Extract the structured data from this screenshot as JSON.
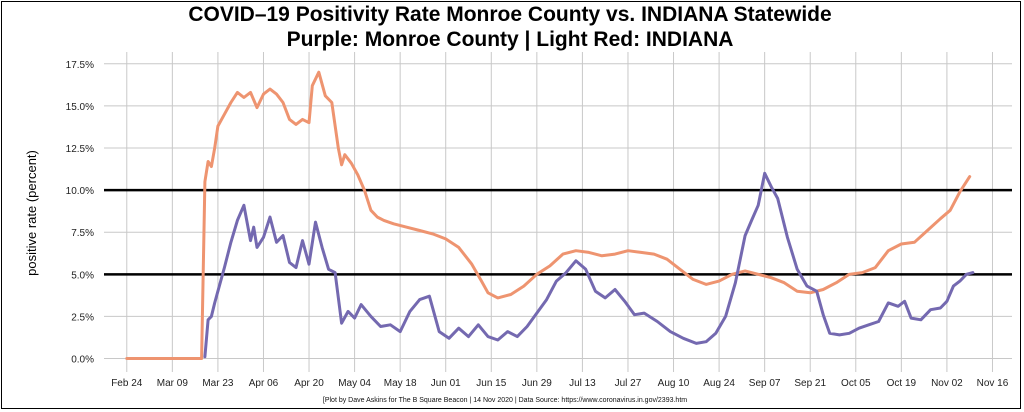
{
  "chart_data": {
    "type": "line",
    "title": "COVID–19 Positivity Rate Monroe County vs. INDIANA Statewide",
    "subtitle": "Purple: Monroe County | Light Red: INDIANA",
    "ylabel": "positive rate (percent)",
    "caption": "[Plot by Dave Askins for The B Square Beacon | 14 Nov 2020 | Data Source: https://www.coronavirus.in.gov/2393.htm",
    "xlim": [
      "2020-02-17",
      "2020-11-22"
    ],
    "ylim": [
      -0.8,
      18.2
    ],
    "x_ticks": [
      {
        "date": "2020-02-24",
        "label": "Feb 24"
      },
      {
        "date": "2020-03-09",
        "label": "Mar 09"
      },
      {
        "date": "2020-03-23",
        "label": "Mar 23"
      },
      {
        "date": "2020-04-06",
        "label": "Apr 06"
      },
      {
        "date": "2020-04-20",
        "label": "Apr 20"
      },
      {
        "date": "2020-05-04",
        "label": "May 04"
      },
      {
        "date": "2020-05-18",
        "label": "May 18"
      },
      {
        "date": "2020-06-01",
        "label": "Jun 01"
      },
      {
        "date": "2020-06-15",
        "label": "Jun 15"
      },
      {
        "date": "2020-06-29",
        "label": "Jun 29"
      },
      {
        "date": "2020-07-13",
        "label": "Jul 13"
      },
      {
        "date": "2020-07-27",
        "label": "Jul 27"
      },
      {
        "date": "2020-08-10",
        "label": "Aug 10"
      },
      {
        "date": "2020-08-24",
        "label": "Aug 24"
      },
      {
        "date": "2020-09-07",
        "label": "Sep 07"
      },
      {
        "date": "2020-09-21",
        "label": "Sep 21"
      },
      {
        "date": "2020-10-05",
        "label": "Oct 05"
      },
      {
        "date": "2020-10-19",
        "label": "Oct 19"
      },
      {
        "date": "2020-11-02",
        "label": "Nov 02"
      },
      {
        "date": "2020-11-16",
        "label": "Nov 16"
      }
    ],
    "y_ticks": [
      {
        "value": 0.0,
        "label": "0.0%"
      },
      {
        "value": 2.5,
        "label": "2.5%"
      },
      {
        "value": 5.0,
        "label": "5.0%"
      },
      {
        "value": 7.5,
        "label": "7.5%"
      },
      {
        "value": 10.0,
        "label": "10.0%"
      },
      {
        "value": 12.5,
        "label": "12.5%"
      },
      {
        "value": 15.0,
        "label": "15.0%"
      },
      {
        "value": 17.5,
        "label": "17.5%"
      }
    ],
    "reference_lines": [
      5.0,
      10.0
    ],
    "grid": true,
    "series": [
      {
        "color": "#EE9470",
        "points": [
          [
            "2020-02-24",
            0.0
          ],
          [
            "2020-03-01",
            0.0
          ],
          [
            "2020-03-09",
            0.0
          ],
          [
            "2020-03-16",
            0.0
          ],
          [
            "2020-03-18",
            0.0
          ],
          [
            "2020-03-19",
            10.5
          ],
          [
            "2020-03-20",
            11.7
          ],
          [
            "2020-03-21",
            11.4
          ],
          [
            "2020-03-22",
            12.5
          ],
          [
            "2020-03-23",
            13.8
          ],
          [
            "2020-03-25",
            14.5
          ],
          [
            "2020-03-27",
            15.2
          ],
          [
            "2020-03-29",
            15.8
          ],
          [
            "2020-03-31",
            15.5
          ],
          [
            "2020-04-02",
            15.8
          ],
          [
            "2020-04-04",
            14.9
          ],
          [
            "2020-04-06",
            15.7
          ],
          [
            "2020-04-08",
            16.0
          ],
          [
            "2020-04-10",
            15.7
          ],
          [
            "2020-04-12",
            15.2
          ],
          [
            "2020-04-14",
            14.2
          ],
          [
            "2020-04-16",
            13.9
          ],
          [
            "2020-04-18",
            14.2
          ],
          [
            "2020-04-20",
            14.0
          ],
          [
            "2020-04-21",
            16.2
          ],
          [
            "2020-04-23",
            17.0
          ],
          [
            "2020-04-25",
            15.6
          ],
          [
            "2020-04-27",
            15.2
          ],
          [
            "2020-04-29",
            12.5
          ],
          [
            "2020-04-30",
            11.5
          ],
          [
            "2020-05-01",
            12.1
          ],
          [
            "2020-05-03",
            11.6
          ],
          [
            "2020-05-05",
            10.9
          ],
          [
            "2020-05-07",
            10.0
          ],
          [
            "2020-05-09",
            8.8
          ],
          [
            "2020-05-11",
            8.4
          ],
          [
            "2020-05-13",
            8.2
          ],
          [
            "2020-05-16",
            8.0
          ],
          [
            "2020-05-20",
            7.8
          ],
          [
            "2020-05-24",
            7.6
          ],
          [
            "2020-05-28",
            7.4
          ],
          [
            "2020-06-01",
            7.1
          ],
          [
            "2020-06-05",
            6.6
          ],
          [
            "2020-06-09",
            5.6
          ],
          [
            "2020-06-12",
            4.6
          ],
          [
            "2020-06-14",
            3.9
          ],
          [
            "2020-06-17",
            3.6
          ],
          [
            "2020-06-21",
            3.8
          ],
          [
            "2020-06-25",
            4.3
          ],
          [
            "2020-06-29",
            5.0
          ],
          [
            "2020-07-03",
            5.5
          ],
          [
            "2020-07-07",
            6.2
          ],
          [
            "2020-07-11",
            6.4
          ],
          [
            "2020-07-15",
            6.3
          ],
          [
            "2020-07-19",
            6.1
          ],
          [
            "2020-07-23",
            6.2
          ],
          [
            "2020-07-27",
            6.4
          ],
          [
            "2020-07-31",
            6.3
          ],
          [
            "2020-08-04",
            6.2
          ],
          [
            "2020-08-08",
            5.9
          ],
          [
            "2020-08-12",
            5.3
          ],
          [
            "2020-08-16",
            4.7
          ],
          [
            "2020-08-20",
            4.4
          ],
          [
            "2020-08-24",
            4.6
          ],
          [
            "2020-08-28",
            5.0
          ],
          [
            "2020-09-01",
            5.2
          ],
          [
            "2020-09-05",
            5.0
          ],
          [
            "2020-09-09",
            4.8
          ],
          [
            "2020-09-13",
            4.5
          ],
          [
            "2020-09-17",
            4.0
          ],
          [
            "2020-09-21",
            3.9
          ],
          [
            "2020-09-25",
            4.1
          ],
          [
            "2020-09-29",
            4.5
          ],
          [
            "2020-10-03",
            5.0
          ],
          [
            "2020-10-07",
            5.1
          ],
          [
            "2020-10-11",
            5.4
          ],
          [
            "2020-10-15",
            6.4
          ],
          [
            "2020-10-19",
            6.8
          ],
          [
            "2020-10-23",
            6.9
          ],
          [
            "2020-10-27",
            7.6
          ],
          [
            "2020-10-31",
            8.3
          ],
          [
            "2020-11-03",
            8.8
          ],
          [
            "2020-11-06",
            9.9
          ],
          [
            "2020-11-09",
            10.8
          ]
        ]
      },
      {
        "color": "#7469B0",
        "points": [
          [
            "2020-03-19",
            0.1
          ],
          [
            "2020-03-20",
            2.3
          ],
          [
            "2020-03-21",
            2.5
          ],
          [
            "2020-03-22",
            3.3
          ],
          [
            "2020-03-23",
            4.0
          ],
          [
            "2020-03-25",
            5.4
          ],
          [
            "2020-03-27",
            6.9
          ],
          [
            "2020-03-29",
            8.2
          ],
          [
            "2020-03-31",
            9.1
          ],
          [
            "2020-04-02",
            7.0
          ],
          [
            "2020-04-03",
            7.8
          ],
          [
            "2020-04-04",
            6.6
          ],
          [
            "2020-04-06",
            7.2
          ],
          [
            "2020-04-08",
            8.4
          ],
          [
            "2020-04-10",
            6.9
          ],
          [
            "2020-04-12",
            7.3
          ],
          [
            "2020-04-14",
            5.7
          ],
          [
            "2020-04-16",
            5.4
          ],
          [
            "2020-04-18",
            7.0
          ],
          [
            "2020-04-20",
            5.6
          ],
          [
            "2020-04-22",
            8.1
          ],
          [
            "2020-04-24",
            6.6
          ],
          [
            "2020-04-26",
            5.3
          ],
          [
            "2020-04-28",
            5.1
          ],
          [
            "2020-04-30",
            2.1
          ],
          [
            "2020-05-02",
            2.8
          ],
          [
            "2020-05-04",
            2.4
          ],
          [
            "2020-05-06",
            3.2
          ],
          [
            "2020-05-09",
            2.5
          ],
          [
            "2020-05-12",
            1.9
          ],
          [
            "2020-05-15",
            2.0
          ],
          [
            "2020-05-18",
            1.6
          ],
          [
            "2020-05-21",
            2.8
          ],
          [
            "2020-05-24",
            3.5
          ],
          [
            "2020-05-27",
            3.7
          ],
          [
            "2020-05-30",
            1.6
          ],
          [
            "2020-06-02",
            1.2
          ],
          [
            "2020-06-05",
            1.8
          ],
          [
            "2020-06-08",
            1.3
          ],
          [
            "2020-06-11",
            2.0
          ],
          [
            "2020-06-14",
            1.3
          ],
          [
            "2020-06-17",
            1.1
          ],
          [
            "2020-06-20",
            1.6
          ],
          [
            "2020-06-23",
            1.3
          ],
          [
            "2020-06-26",
            1.9
          ],
          [
            "2020-06-29",
            2.7
          ],
          [
            "2020-07-02",
            3.5
          ],
          [
            "2020-07-05",
            4.6
          ],
          [
            "2020-07-08",
            5.1
          ],
          [
            "2020-07-11",
            5.8
          ],
          [
            "2020-07-14",
            5.3
          ],
          [
            "2020-07-17",
            4.0
          ],
          [
            "2020-07-20",
            3.6
          ],
          [
            "2020-07-23",
            4.1
          ],
          [
            "2020-07-26",
            3.4
          ],
          [
            "2020-07-29",
            2.6
          ],
          [
            "2020-08-01",
            2.7
          ],
          [
            "2020-08-05",
            2.2
          ],
          [
            "2020-08-09",
            1.6
          ],
          [
            "2020-08-13",
            1.2
          ],
          [
            "2020-08-17",
            0.9
          ],
          [
            "2020-08-20",
            1.0
          ],
          [
            "2020-08-23",
            1.5
          ],
          [
            "2020-08-26",
            2.5
          ],
          [
            "2020-08-29",
            4.5
          ],
          [
            "2020-09-01",
            7.3
          ],
          [
            "2020-09-03",
            8.2
          ],
          [
            "2020-09-05",
            9.1
          ],
          [
            "2020-09-07",
            11.0
          ],
          [
            "2020-09-09",
            10.2
          ],
          [
            "2020-09-11",
            9.5
          ],
          [
            "2020-09-14",
            7.2
          ],
          [
            "2020-09-17",
            5.3
          ],
          [
            "2020-09-20",
            4.3
          ],
          [
            "2020-09-23",
            4.0
          ],
          [
            "2020-09-25",
            2.6
          ],
          [
            "2020-09-27",
            1.5
          ],
          [
            "2020-09-30",
            1.4
          ],
          [
            "2020-10-03",
            1.5
          ],
          [
            "2020-10-06",
            1.8
          ],
          [
            "2020-10-09",
            2.0
          ],
          [
            "2020-10-12",
            2.2
          ],
          [
            "2020-10-15",
            3.3
          ],
          [
            "2020-10-18",
            3.1
          ],
          [
            "2020-10-20",
            3.4
          ],
          [
            "2020-10-22",
            2.4
          ],
          [
            "2020-10-25",
            2.3
          ],
          [
            "2020-10-28",
            2.9
          ],
          [
            "2020-10-31",
            3.0
          ],
          [
            "2020-11-02",
            3.4
          ],
          [
            "2020-11-04",
            4.3
          ],
          [
            "2020-11-06",
            4.6
          ],
          [
            "2020-11-08",
            5.0
          ],
          [
            "2020-11-10",
            5.1
          ]
        ]
      }
    ]
  }
}
